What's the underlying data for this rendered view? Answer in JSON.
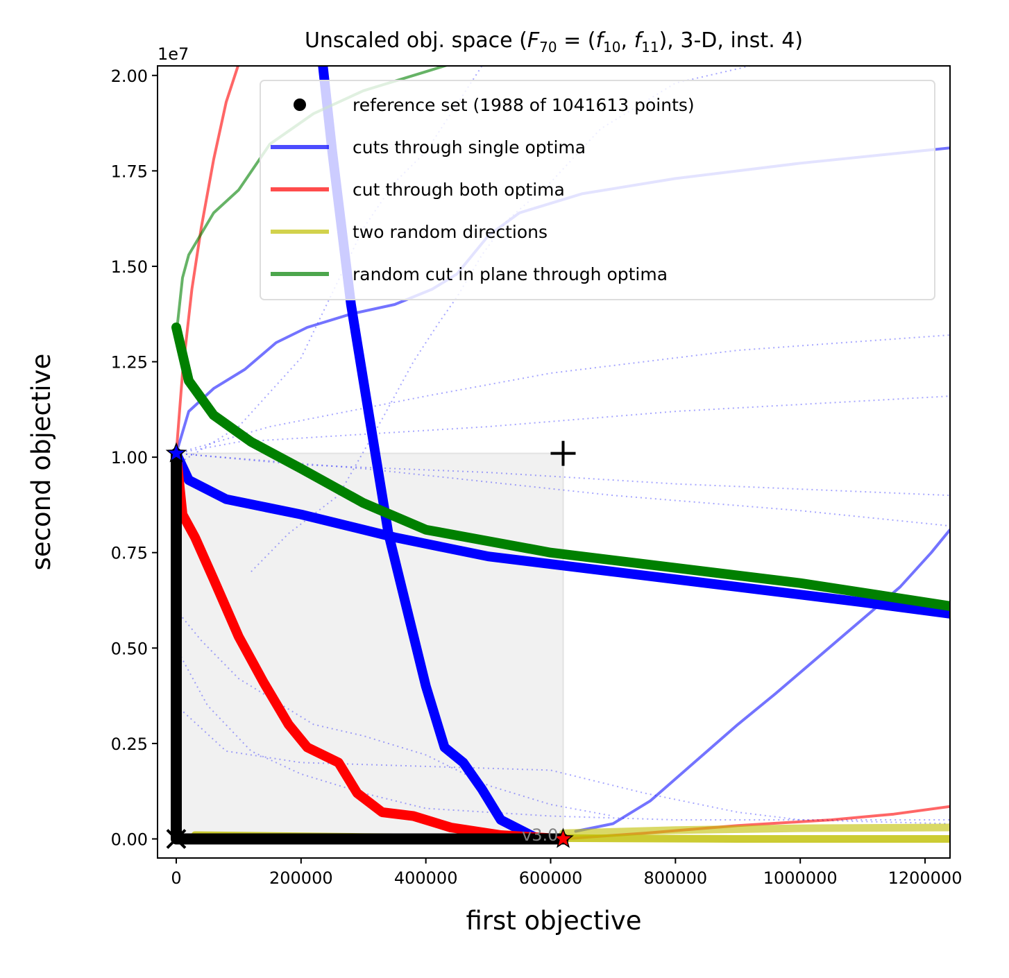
{
  "chart_data": {
    "type": "line",
    "title_parts": [
      "Unscaled obj. space (",
      "F",
      "70",
      " = (",
      "f",
      "10",
      ", ",
      "f",
      "11",
      "), 3-D, inst. 4)"
    ],
    "xlabel": "first objective",
    "ylabel": "second objective",
    "y_offset_text": "1e7",
    "version_text": "v3.0",
    "xlim": [
      -30000,
      1240000
    ],
    "ylim": [
      -500000,
      20250000
    ],
    "x_ticks": [
      0,
      200000,
      400000,
      600000,
      800000,
      1000000,
      1200000
    ],
    "x_tick_labels": [
      "0",
      "200000",
      "400000",
      "600000",
      "800000",
      "1000000",
      "1200000"
    ],
    "y_ticks": [
      0,
      2500000,
      5000000,
      7500000,
      10000000,
      12500000,
      15000000,
      17500000,
      20000000
    ],
    "y_tick_labels": [
      "0.00",
      "0.25",
      "0.50",
      "0.75",
      "1.00",
      "1.25",
      "1.50",
      "1.75",
      "2.00"
    ],
    "legend": [
      {
        "label": "reference set (1988 of 1041613 points)",
        "marker": "dot",
        "color": "#000000"
      },
      {
        "label": "cuts through single optima",
        "marker": "line",
        "color": "#0000ff"
      },
      {
        "label": "cut through both optima",
        "marker": "line",
        "color": "#ff0000"
      },
      {
        "label": "two random directions",
        "marker": "line",
        "color": "#bfbf00"
      },
      {
        "label": "random cut in plane through optima",
        "marker": "line",
        "color": "#008000"
      }
    ],
    "legend_position": "top-right",
    "reference_box": {
      "x": [
        0,
        620000
      ],
      "y": [
        0,
        10100000
      ]
    },
    "markers": {
      "optimum_1": {
        "x": 0,
        "y": 10100000,
        "color": "#0000ff"
      },
      "optimum_2": {
        "x": 620000,
        "y": 0,
        "color": "#ff0000"
      },
      "reference_point": {
        "x": 620000,
        "y": 10100000
      },
      "ideal_point": {
        "x": 0,
        "y": 0
      }
    },
    "series": [
      {
        "group": "reference",
        "color": "#000000",
        "width": 16,
        "opacity": 1,
        "points": [
          [
            0,
            10100000
          ],
          [
            0,
            0
          ],
          [
            620000,
            0
          ]
        ]
      },
      {
        "group": "single",
        "color": "#0000ff",
        "width": 4,
        "opacity": 0.55,
        "points": [
          [
            0,
            10100000
          ],
          [
            20000,
            11200000
          ],
          [
            60000,
            11800000
          ],
          [
            110000,
            12300000
          ],
          [
            160000,
            13000000
          ],
          [
            210000,
            13400000
          ],
          [
            280000,
            13750000
          ],
          [
            350000,
            14000000
          ],
          [
            410000,
            14400000
          ],
          [
            450000,
            14800000
          ],
          [
            500000,
            15800000
          ],
          [
            550000,
            16400000
          ],
          [
            650000,
            16900000
          ],
          [
            800000,
            17300000
          ],
          [
            1000000,
            17700000
          ],
          [
            1240000,
            18100000
          ]
        ]
      },
      {
        "group": "single",
        "color": "#0000ff",
        "width": 4,
        "opacity": 0.55,
        "points": [
          [
            640000,
            200000
          ],
          [
            700000,
            400000
          ],
          [
            760000,
            1000000
          ],
          [
            830000,
            2000000
          ],
          [
            900000,
            3000000
          ],
          [
            960000,
            3800000
          ],
          [
            1010000,
            4500000
          ],
          [
            1060000,
            5200000
          ],
          [
            1110000,
            5900000
          ],
          [
            1160000,
            6600000
          ],
          [
            1210000,
            7500000
          ],
          [
            1240000,
            8100000
          ]
        ]
      },
      {
        "group": "single",
        "color": "#0000ff",
        "width": 14,
        "opacity": 1,
        "points": [
          [
            0,
            10100000
          ],
          [
            20000,
            9400000
          ],
          [
            80000,
            8900000
          ],
          [
            200000,
            8500000
          ],
          [
            350000,
            7900000
          ],
          [
            500000,
            7400000
          ],
          [
            700000,
            7000000
          ],
          [
            900000,
            6600000
          ],
          [
            1100000,
            6200000
          ],
          [
            1240000,
            5900000
          ]
        ]
      },
      {
        "group": "single",
        "color": "#0000ff",
        "width": 14,
        "opacity": 1,
        "points": [
          [
            230000,
            21000000
          ],
          [
            250000,
            18000000
          ],
          [
            265000,
            16000000
          ],
          [
            280000,
            14000000
          ],
          [
            300000,
            12000000
          ],
          [
            320000,
            10000000
          ],
          [
            340000,
            8000000
          ],
          [
            370000,
            6000000
          ],
          [
            400000,
            4000000
          ],
          [
            430000,
            2400000
          ],
          [
            460000,
            2000000
          ],
          [
            490000,
            1300000
          ],
          [
            520000,
            500000
          ],
          [
            580000,
            0
          ]
        ]
      },
      {
        "group": "both",
        "color": "#ff0000",
        "width": 4,
        "opacity": 0.6,
        "points": [
          [
            0,
            10100000
          ],
          [
            10000,
            12200000
          ],
          [
            25000,
            14400000
          ],
          [
            40000,
            16000000
          ],
          [
            60000,
            17800000
          ],
          [
            80000,
            19300000
          ],
          [
            100000,
            20300000
          ]
        ]
      },
      {
        "group": "both",
        "color": "#ff0000",
        "width": 4,
        "opacity": 0.6,
        "points": [
          [
            620000,
            0
          ],
          [
            750000,
            150000
          ],
          [
            900000,
            350000
          ],
          [
            1050000,
            500000
          ],
          [
            1150000,
            650000
          ],
          [
            1240000,
            850000
          ]
        ]
      },
      {
        "group": "both",
        "color": "#ff0000",
        "width": 14,
        "opacity": 1,
        "points": [
          [
            0,
            10100000
          ],
          [
            10000,
            8500000
          ],
          [
            30000,
            7900000
          ],
          [
            60000,
            6800000
          ],
          [
            100000,
            5300000
          ],
          [
            140000,
            4100000
          ],
          [
            180000,
            3000000
          ],
          [
            210000,
            2400000
          ],
          [
            260000,
            2000000
          ],
          [
            290000,
            1200000
          ],
          [
            330000,
            700000
          ],
          [
            380000,
            600000
          ],
          [
            440000,
            300000
          ],
          [
            520000,
            100000
          ],
          [
            620000,
            0
          ]
        ]
      },
      {
        "group": "random",
        "color": "#bfbf00",
        "width": 11,
        "opacity": 0.8,
        "points": [
          [
            30000,
            100000
          ],
          [
            300000,
            50000
          ],
          [
            620000,
            20000
          ],
          [
            900000,
            0
          ],
          [
            1240000,
            0
          ]
        ]
      },
      {
        "group": "random",
        "color": "#bfbf00",
        "width": 11,
        "opacity": 0.6,
        "points": [
          [
            620000,
            150000
          ],
          [
            800000,
            230000
          ],
          [
            1000000,
            280000
          ],
          [
            1240000,
            300000
          ]
        ]
      },
      {
        "group": "plane",
        "color": "#008000",
        "width": 4,
        "opacity": 0.6,
        "points": [
          [
            0,
            13200000
          ],
          [
            10000,
            14700000
          ],
          [
            20000,
            15300000
          ],
          [
            60000,
            16400000
          ],
          [
            100000,
            17000000
          ],
          [
            150000,
            18200000
          ],
          [
            220000,
            19000000
          ],
          [
            300000,
            19600000
          ],
          [
            400000,
            20100000
          ],
          [
            460000,
            20400000
          ]
        ]
      },
      {
        "group": "plane",
        "color": "#008000",
        "width": 14,
        "opacity": 1,
        "points": [
          [
            0,
            13400000
          ],
          [
            20000,
            12000000
          ],
          [
            60000,
            11100000
          ],
          [
            120000,
            10400000
          ],
          [
            200000,
            9700000
          ],
          [
            300000,
            8800000
          ],
          [
            400000,
            8100000
          ],
          [
            600000,
            7500000
          ],
          [
            800000,
            7100000
          ],
          [
            1000000,
            6700000
          ],
          [
            1240000,
            6100000
          ]
        ]
      },
      {
        "group": "dotted",
        "color": "#0000ff",
        "width": 2,
        "opacity": 0.35,
        "dotted": true,
        "points": [
          [
            0,
            10100000
          ],
          [
            100000,
            10400000
          ],
          [
            300000,
            10600000
          ],
          [
            500000,
            10800000
          ],
          [
            800000,
            11200000
          ],
          [
            1240000,
            11600000
          ]
        ]
      },
      {
        "group": "dotted",
        "color": "#0000ff",
        "width": 2,
        "opacity": 0.35,
        "dotted": true,
        "points": [
          [
            0,
            10100000
          ],
          [
            150000,
            10800000
          ],
          [
            400000,
            11600000
          ],
          [
            600000,
            12200000
          ],
          [
            900000,
            12800000
          ],
          [
            1240000,
            13200000
          ]
        ]
      },
      {
        "group": "dotted",
        "color": "#0000ff",
        "width": 2,
        "opacity": 0.35,
        "dotted": true,
        "points": [
          [
            0,
            10100000
          ],
          [
            200000,
            9800000
          ],
          [
            500000,
            9600000
          ],
          [
            800000,
            9300000
          ],
          [
            1240000,
            9000000
          ]
        ]
      },
      {
        "group": "dotted",
        "color": "#0000ff",
        "width": 2,
        "opacity": 0.35,
        "dotted": true,
        "points": [
          [
            0,
            10100000
          ],
          [
            300000,
            9700000
          ],
          [
            700000,
            9000000
          ],
          [
            1000000,
            8600000
          ],
          [
            1240000,
            8200000
          ]
        ]
      },
      {
        "group": "dotted",
        "color": "#0000ff",
        "width": 2,
        "opacity": 0.35,
        "dotted": true,
        "points": [
          [
            0,
            9800000
          ],
          [
            100000,
            10800000
          ],
          [
            200000,
            12600000
          ],
          [
            300000,
            16000000
          ],
          [
            350000,
            17200000
          ],
          [
            400000,
            18000000
          ],
          [
            500000,
            20500000
          ]
        ]
      },
      {
        "group": "dotted",
        "color": "#0000ff",
        "width": 2,
        "opacity": 0.35,
        "dotted": true,
        "points": [
          [
            120000,
            7000000
          ],
          [
            180000,
            8000000
          ],
          [
            260000,
            9000000
          ],
          [
            330000,
            11000000
          ],
          [
            380000,
            12500000
          ],
          [
            420000,
            13500000
          ],
          [
            450000,
            14200000
          ],
          [
            490000,
            15300000
          ],
          [
            530000,
            16200000
          ],
          [
            600000,
            17200000
          ],
          [
            680000,
            18600000
          ],
          [
            800000,
            19800000
          ],
          [
            960000,
            20400000
          ]
        ]
      },
      {
        "group": "dotted",
        "color": "#0000ff",
        "width": 2,
        "opacity": 0.35,
        "dotted": true,
        "points": [
          [
            0,
            5000000
          ],
          [
            50000,
            3500000
          ],
          [
            120000,
            2300000
          ],
          [
            200000,
            1700000
          ],
          [
            300000,
            1200000
          ],
          [
            400000,
            800000
          ],
          [
            600000,
            600000
          ],
          [
            800000,
            500000
          ],
          [
            1240000,
            500000
          ]
        ]
      },
      {
        "group": "dotted",
        "color": "#0000ff",
        "width": 2,
        "opacity": 0.35,
        "dotted": true,
        "points": [
          [
            0,
            3500000
          ],
          [
            80000,
            2300000
          ],
          [
            200000,
            2000000
          ],
          [
            400000,
            1900000
          ],
          [
            600000,
            1800000
          ],
          [
            750000,
            1200000
          ],
          [
            900000,
            700000
          ],
          [
            1000000,
            500000
          ],
          [
            1240000,
            400000
          ]
        ]
      },
      {
        "group": "dotted",
        "color": "#0000ff",
        "width": 2,
        "opacity": 0.35,
        "dotted": true,
        "points": [
          [
            0,
            6000000
          ],
          [
            40000,
            5200000
          ],
          [
            100000,
            4200000
          ],
          [
            160000,
            3600000
          ],
          [
            220000,
            3000000
          ],
          [
            300000,
            2700000
          ],
          [
            400000,
            2200000
          ],
          [
            500000,
            1400000
          ],
          [
            600000,
            900000
          ],
          [
            700000,
            600000
          ]
        ]
      }
    ]
  }
}
